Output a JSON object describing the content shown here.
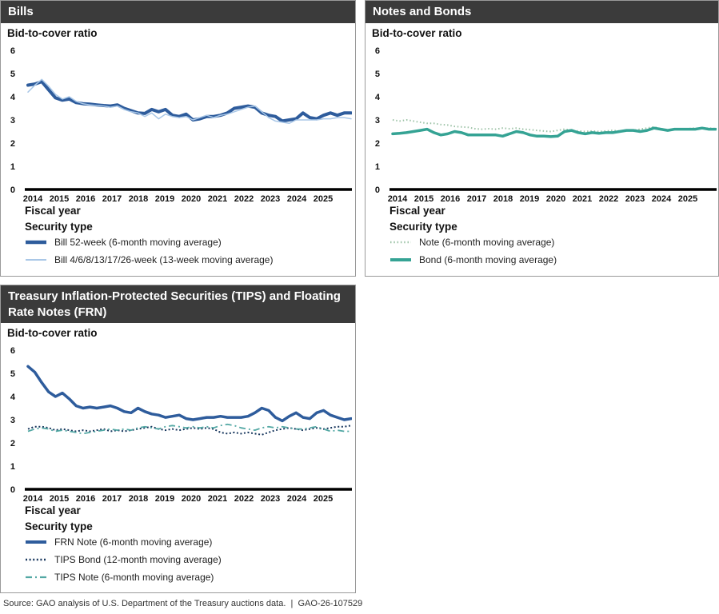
{
  "source_line": "Source: GAO analysis of U.S. Department of the Treasury auctions data.  |  GAO-26-107529",
  "colors": {
    "header_bar": "#3b3b3b",
    "axis_baseline": "#000000",
    "dark_blue": "#2e5c9c",
    "light_blue": "#a9c7e7",
    "teal": "#35a394",
    "light_green": "#9dc3a7",
    "navy": "#17365d",
    "dashed_teal": "#53a8a4"
  },
  "chart_data": [
    {
      "type": "line",
      "title": "Bills",
      "ylabel": "Bid-to-cover ratio",
      "xlabel": "Fiscal year",
      "legend_title": "Security type",
      "ylim": [
        0,
        6
      ],
      "yticks": [
        6,
        5,
        4,
        3,
        2,
        1,
        0
      ],
      "xticks": [
        2014,
        2015,
        2016,
        2017,
        2018,
        2019,
        2020,
        2021,
        2022,
        2023,
        2024,
        2025
      ],
      "x_start": 2014,
      "x_step": 0.25,
      "grid": false,
      "legend_position": "below",
      "series": [
        {
          "name": "Bill 52-week (6-month moving average)",
          "color": "#2e5c9c",
          "width": 4,
          "dash": "",
          "values": [
            4.5,
            4.55,
            4.65,
            4.3,
            3.95,
            3.85,
            3.9,
            3.75,
            3.7,
            3.68,
            3.65,
            3.62,
            3.6,
            3.65,
            3.5,
            3.4,
            3.3,
            3.28,
            3.45,
            3.35,
            3.45,
            3.2,
            3.15,
            3.25,
            3.0,
            3.05,
            3.15,
            3.15,
            3.2,
            3.3,
            3.5,
            3.55,
            3.6,
            3.55,
            3.3,
            3.2,
            3.15,
            2.95,
            3.0,
            3.05,
            3.3,
            3.1,
            3.05,
            3.2,
            3.3,
            3.2,
            3.3,
            3.3
          ]
        },
        {
          "name": "Bill 4/6/8/13/17/26-week (13-week moving average)",
          "color": "#a9c7e7",
          "width": 1.5,
          "dash": "",
          "values": [
            4.2,
            4.5,
            4.75,
            4.45,
            4.1,
            3.9,
            4.0,
            3.8,
            3.7,
            3.65,
            3.62,
            3.6,
            3.55,
            3.6,
            3.45,
            3.35,
            3.3,
            3.15,
            3.3,
            3.05,
            3.25,
            3.15,
            3.1,
            3.15,
            3.0,
            3.1,
            3.2,
            3.1,
            3.2,
            3.25,
            3.35,
            3.45,
            3.55,
            3.6,
            3.35,
            3.1,
            2.95,
            2.9,
            2.85,
            3.0,
            3.0,
            3.0,
            3.0,
            3.05,
            3.05,
            3.1,
            3.1,
            3.05
          ]
        }
      ]
    },
    {
      "type": "line",
      "title": "Notes and Bonds",
      "ylabel": "Bid-to-cover ratio",
      "xlabel": "Fiscal year",
      "legend_title": "Security type",
      "ylim": [
        0,
        6
      ],
      "yticks": [
        6,
        5,
        4,
        3,
        2,
        1,
        0
      ],
      "xticks": [
        2014,
        2015,
        2016,
        2017,
        2018,
        2019,
        2020,
        2021,
        2022,
        2023,
        2024,
        2025
      ],
      "x_start": 2014,
      "x_step": 0.25,
      "grid": false,
      "legend_position": "below",
      "series": [
        {
          "name": "Note (6-month moving average)",
          "color": "#9dc3a7",
          "width": 2,
          "dash": "1.5,2.8",
          "values": [
            3.0,
            2.95,
            3.0,
            2.95,
            2.9,
            2.85,
            2.85,
            2.8,
            2.78,
            2.72,
            2.7,
            2.68,
            2.62,
            2.6,
            2.62,
            2.6,
            2.65,
            2.62,
            2.65,
            2.6,
            2.58,
            2.55,
            2.52,
            2.5,
            2.55,
            2.6,
            2.55,
            2.52,
            2.5,
            2.52,
            2.5,
            2.52,
            2.55,
            2.52,
            2.55,
            2.55,
            2.6,
            2.65,
            2.7,
            2.62,
            2.58,
            2.6,
            2.6,
            2.62,
            2.65,
            2.62,
            2.65,
            2.62
          ]
        },
        {
          "name": "Bond (6-month moving average)",
          "color": "#35a394",
          "width": 3.5,
          "dash": "",
          "values": [
            2.4,
            2.42,
            2.45,
            2.5,
            2.55,
            2.6,
            2.45,
            2.35,
            2.4,
            2.5,
            2.45,
            2.35,
            2.35,
            2.35,
            2.35,
            2.35,
            2.3,
            2.4,
            2.5,
            2.45,
            2.35,
            2.3,
            2.3,
            2.28,
            2.3,
            2.5,
            2.55,
            2.45,
            2.4,
            2.45,
            2.42,
            2.45,
            2.45,
            2.5,
            2.55,
            2.55,
            2.5,
            2.55,
            2.65,
            2.6,
            2.55,
            2.6,
            2.6,
            2.6,
            2.6,
            2.65,
            2.6,
            2.6
          ]
        }
      ]
    },
    {
      "type": "line",
      "title": "Treasury Inflation-Protected Securities (TIPS) and Floating Rate Notes (FRN)",
      "ylabel": "Bid-to-cover ratio",
      "xlabel": "Fiscal year",
      "legend_title": "Security type",
      "ylim": [
        0,
        6
      ],
      "yticks": [
        6,
        5,
        4,
        3,
        2,
        1,
        0
      ],
      "xticks": [
        2014,
        2015,
        2016,
        2017,
        2018,
        2019,
        2020,
        2021,
        2022,
        2023,
        2024,
        2025
      ],
      "x_start": 2014,
      "x_step": 0.25,
      "grid": false,
      "legend_position": "below",
      "series": [
        {
          "name": "FRN Note (6-month moving average)",
          "color": "#2e5c9c",
          "width": 3.5,
          "dash": "",
          "values": [
            5.3,
            5.05,
            4.6,
            4.2,
            4.0,
            4.15,
            3.9,
            3.6,
            3.5,
            3.55,
            3.5,
            3.55,
            3.6,
            3.5,
            3.35,
            3.3,
            3.5,
            3.35,
            3.25,
            3.2,
            3.1,
            3.15,
            3.2,
            3.05,
            3.0,
            3.05,
            3.1,
            3.1,
            3.15,
            3.1,
            3.1,
            3.1,
            3.15,
            3.3,
            3.5,
            3.4,
            3.1,
            2.95,
            3.15,
            3.3,
            3.1,
            3.05,
            3.3,
            3.4,
            3.2,
            3.1,
            3.0,
            3.05
          ]
        },
        {
          "name": "TIPS Bond (12-month moving average)",
          "color": "#17365d",
          "width": 2,
          "dash": "2,2.6",
          "values": [
            2.6,
            2.7,
            2.7,
            2.65,
            2.55,
            2.6,
            2.55,
            2.5,
            2.55,
            2.5,
            2.55,
            2.6,
            2.5,
            2.55,
            2.5,
            2.55,
            2.6,
            2.65,
            2.7,
            2.6,
            2.55,
            2.6,
            2.55,
            2.6,
            2.65,
            2.6,
            2.65,
            2.6,
            2.45,
            2.4,
            2.45,
            2.4,
            2.45,
            2.4,
            2.35,
            2.45,
            2.55,
            2.6,
            2.65,
            2.6,
            2.55,
            2.6,
            2.65,
            2.6,
            2.65,
            2.7,
            2.7,
            2.75
          ]
        },
        {
          "name": "TIPS Note (6-month moving average)",
          "color": "#53a8a4",
          "width": 1.8,
          "dash": "8,4,2,4",
          "values": [
            2.5,
            2.6,
            2.65,
            2.6,
            2.5,
            2.55,
            2.5,
            2.45,
            2.4,
            2.45,
            2.5,
            2.55,
            2.6,
            2.55,
            2.6,
            2.55,
            2.65,
            2.7,
            2.65,
            2.6,
            2.7,
            2.75,
            2.7,
            2.65,
            2.7,
            2.65,
            2.7,
            2.65,
            2.75,
            2.8,
            2.75,
            2.65,
            2.6,
            2.55,
            2.65,
            2.7,
            2.65,
            2.7,
            2.65,
            2.6,
            2.6,
            2.65,
            2.7,
            2.6,
            2.5,
            2.55,
            2.5,
            2.5
          ]
        }
      ]
    }
  ]
}
